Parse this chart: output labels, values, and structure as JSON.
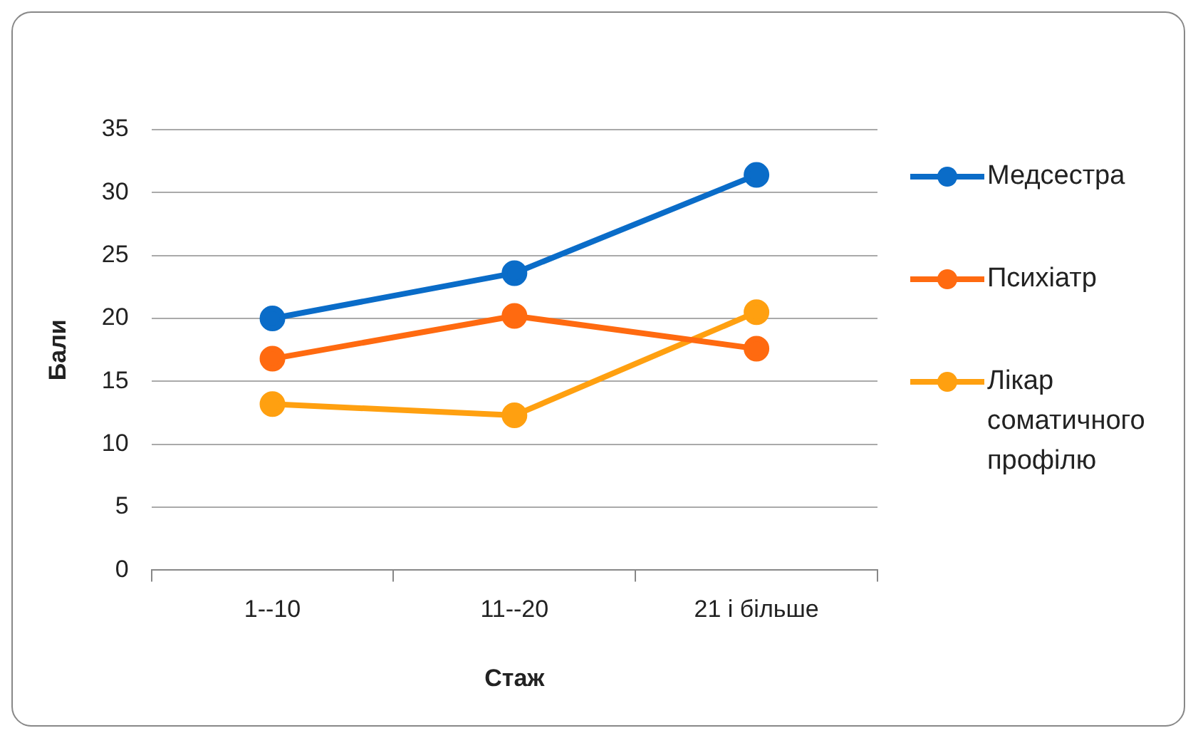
{
  "chart_data": {
    "type": "line",
    "xlabel": "Стаж",
    "ylabel": "Бали",
    "categories": [
      "1--10",
      "11--20",
      "21 і більше"
    ],
    "series": [
      {
        "name": "Медсестра",
        "color": "#0a6cc8",
        "values": [
          20,
          23.6,
          31.4
        ]
      },
      {
        "name": "Психіатр",
        "color": "#ff6a10",
        "values": [
          16.8,
          20.2,
          17.6
        ]
      },
      {
        "name": "Лікар соматичного профілю",
        "color": "#ffa010",
        "values": [
          13.2,
          12.3,
          20.5
        ]
      }
    ],
    "ylim": [
      0,
      35
    ],
    "yticks": [
      0,
      5,
      10,
      15,
      20,
      25,
      30,
      35
    ],
    "grid": "y",
    "legend": "right",
    "marker": "circle",
    "line_style": "solid"
  }
}
